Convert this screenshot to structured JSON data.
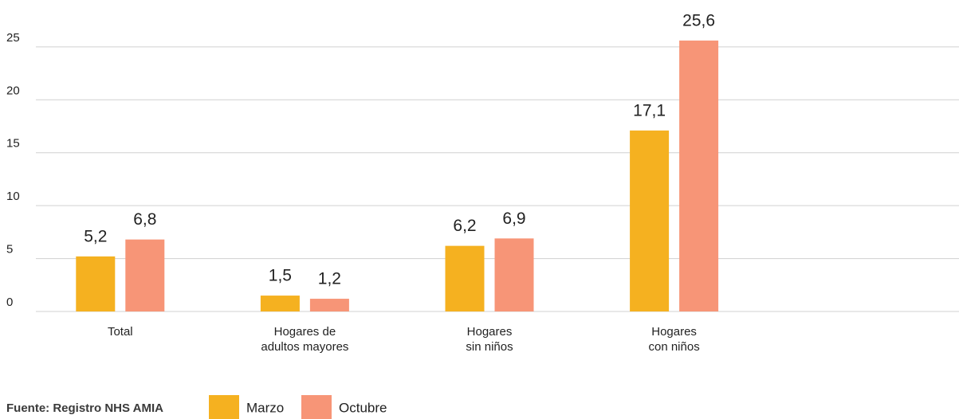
{
  "chart_data": {
    "type": "bar",
    "categories": [
      [
        "Total"
      ],
      [
        "Hogares de",
        "adultos mayores"
      ],
      [
        "Hogares",
        "sin niños"
      ],
      [
        "Hogares",
        "con niños"
      ]
    ],
    "series": [
      {
        "name": "Marzo",
        "color": "#f5b120",
        "values": [
          5.2,
          1.5,
          6.2,
          17.1
        ],
        "value_labels": [
          "5,2",
          "1,5",
          "6,2",
          "17,1"
        ]
      },
      {
        "name": "Octubre",
        "color": "#f79577",
        "values": [
          6.8,
          1.2,
          6.9,
          25.6
        ],
        "value_labels": [
          "6,8",
          "1,2",
          "6,9",
          "25,6"
        ]
      }
    ],
    "ylim": [
      0,
      28
    ],
    "yticks": [
      0,
      5,
      10,
      15,
      20,
      25
    ],
    "grid": true,
    "source": "Fuente: Registro NHS AMIA"
  }
}
